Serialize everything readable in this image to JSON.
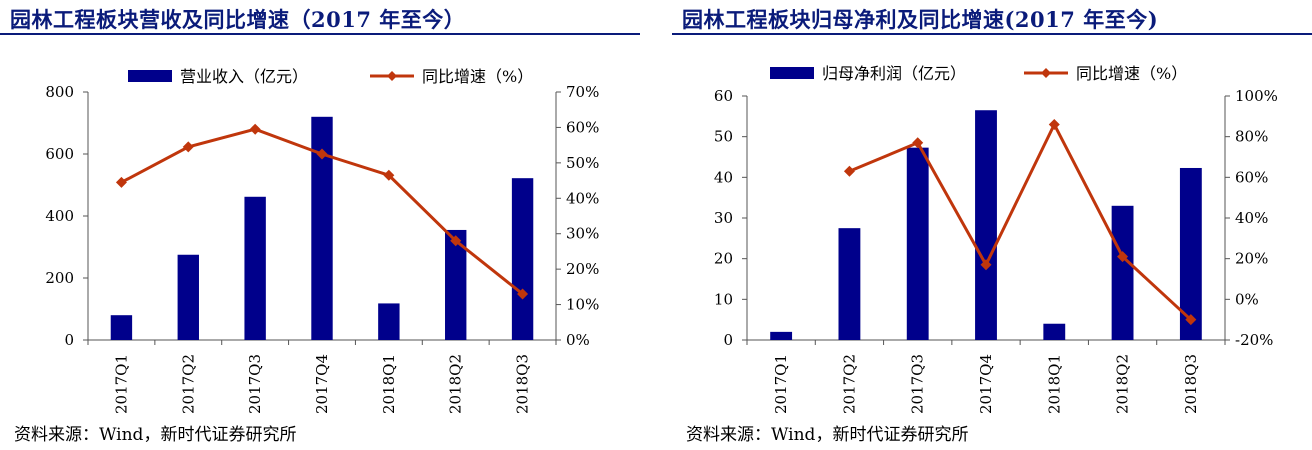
{
  "colors": {
    "bar": "#00008b",
    "line": "#c0360c",
    "title": "#0a1b7a"
  },
  "chart_data": [
    {
      "type": "bar",
      "title": "园林工程板块营收及同比增速（2017 年至今）",
      "source": "资料来源：Wind，新时代证券研究所",
      "categories": [
        "2017Q1",
        "2017Q2",
        "2017Q3",
        "2017Q4",
        "2018Q1",
        "2018Q2",
        "2018Q3"
      ],
      "series": [
        {
          "name": "营业收入（亿元）",
          "type": "bar",
          "axis": "left",
          "values": [
            80,
            275,
            462,
            720,
            118,
            355,
            522
          ]
        },
        {
          "name": "同比增速（%）",
          "type": "line",
          "axis": "right",
          "values": [
            44.5,
            54.5,
            59.5,
            52.5,
            46.5,
            28,
            13
          ]
        }
      ],
      "left_axis": {
        "min": 0,
        "max": 800,
        "ticks": [
          0,
          200,
          400,
          600,
          800
        ]
      },
      "right_axis": {
        "min": 0,
        "max": 70,
        "ticks": [
          0,
          10,
          20,
          30,
          40,
          50,
          60,
          70
        ],
        "tick_labels": [
          "0%",
          "10%",
          "20%",
          "30%",
          "40%",
          "50%",
          "60%",
          "70%"
        ]
      },
      "legend": "top"
    },
    {
      "type": "bar",
      "title": "园林工程板块归母净利及同比增速(2017 年至今)",
      "source": "资料来源：Wind，新时代证券研究所",
      "categories": [
        "2017Q1",
        "2017Q2",
        "2017Q3",
        "2017Q4",
        "2018Q1",
        "2018Q2",
        "2018Q3"
      ],
      "series": [
        {
          "name": "归母净利润（亿元）",
          "type": "bar",
          "axis": "left",
          "values": [
            2,
            27.5,
            47.3,
            56.5,
            4,
            33,
            42.3
          ]
        },
        {
          "name": "同比增速（%）",
          "type": "line",
          "axis": "right",
          "values": [
            null,
            63,
            77,
            17,
            86,
            21,
            -10
          ]
        }
      ],
      "left_axis": {
        "min": 0,
        "max": 60,
        "ticks": [
          0,
          10,
          20,
          30,
          40,
          50,
          60
        ]
      },
      "right_axis": {
        "min": -20,
        "max": 100,
        "ticks": [
          -20,
          0,
          20,
          40,
          60,
          80,
          100
        ],
        "tick_labels": [
          "-20%",
          "0%",
          "20%",
          "40%",
          "60%",
          "80%",
          "100%"
        ]
      },
      "legend": "top"
    }
  ]
}
